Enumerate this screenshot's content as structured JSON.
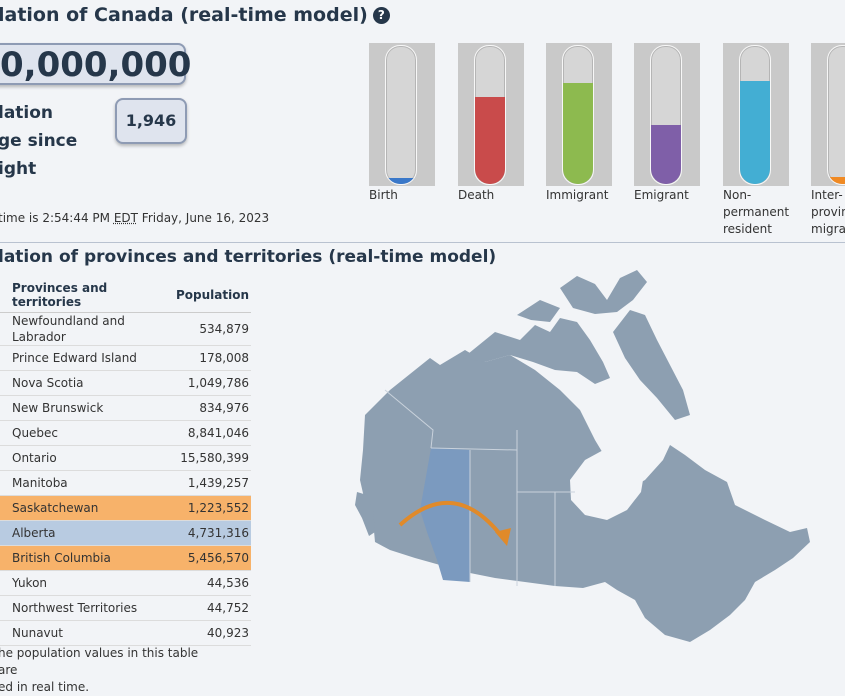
{
  "header": {
    "title": "lation of Canada (real-time model)",
    "help_icon": "question-circle-icon"
  },
  "counter": {
    "population_value": "0,000,000"
  },
  "change": {
    "label_lines": [
      "lation",
      "ge since",
      "ight"
    ],
    "value": "1,946"
  },
  "time_line": {
    "prefix": "time is 2:54:44 PM ",
    "tz": "EDT",
    "suffix": " Friday, June 16, 2023"
  },
  "tubes": [
    {
      "label": "Birth",
      "fill_pct": 4,
      "color": "#3a78c9"
    },
    {
      "label": "Death",
      "fill_pct": 63,
      "color": "#c94b4b"
    },
    {
      "label": "Immigrant",
      "fill_pct": 73,
      "color": "#8dba4f"
    },
    {
      "label": "Emigrant",
      "fill_pct": 43,
      "color": "#7f5fa8"
    },
    {
      "label": "Non-\npermanent\nresident",
      "fill_pct": 75,
      "color": "#43aed3"
    },
    {
      "label": "Inter-\nprovin\nmigran",
      "fill_pct": 5,
      "color": "#f08a24"
    }
  ],
  "section2": {
    "title": "lation of provinces and territories (real-time model)"
  },
  "table": {
    "col_province": "Provinces and territories",
    "col_population": "Population",
    "rows": [
      {
        "name": "Newfoundland and Labrador",
        "value": "534,879",
        "mark": ""
      },
      {
        "name": "Prince Edward Island",
        "value": "178,008",
        "mark": "#d83b3b"
      },
      {
        "name": "Nova Scotia",
        "value": "1,049,786",
        "mark": "#3a6fd8"
      },
      {
        "name": "New Brunswick",
        "value": "834,976",
        "mark": "#f0d020"
      },
      {
        "name": "Quebec",
        "value": "8,841,046",
        "mark": "#3a6fd8"
      },
      {
        "name": "Ontario",
        "value": "15,580,399",
        "mark": "#c02020"
      },
      {
        "name": "Manitoba",
        "value": "1,439,257",
        "mark": "#c02020"
      },
      {
        "name": "Saskatchewan",
        "value": "1,223,552",
        "mark": "#3ca03c"
      },
      {
        "name": "Alberta",
        "value": "4,731,316",
        "mark": "#3a6fd8"
      },
      {
        "name": "British Columbia",
        "value": "5,456,570",
        "mark": ""
      },
      {
        "name": "Yukon",
        "value": "44,536",
        "mark": ""
      },
      {
        "name": "Northwest Territories",
        "value": "44,752",
        "mark": "#3a6fd8"
      },
      {
        "name": "Nunavut",
        "value": "40,923",
        "mark": ""
      }
    ]
  },
  "note": {
    "line1": "he population values in this table are",
    "line2": "ed in real time."
  },
  "map": {
    "base_color": "#8d9fb1",
    "highlight_color": "#7b9abf",
    "arrow_color": "#e08a2a"
  }
}
